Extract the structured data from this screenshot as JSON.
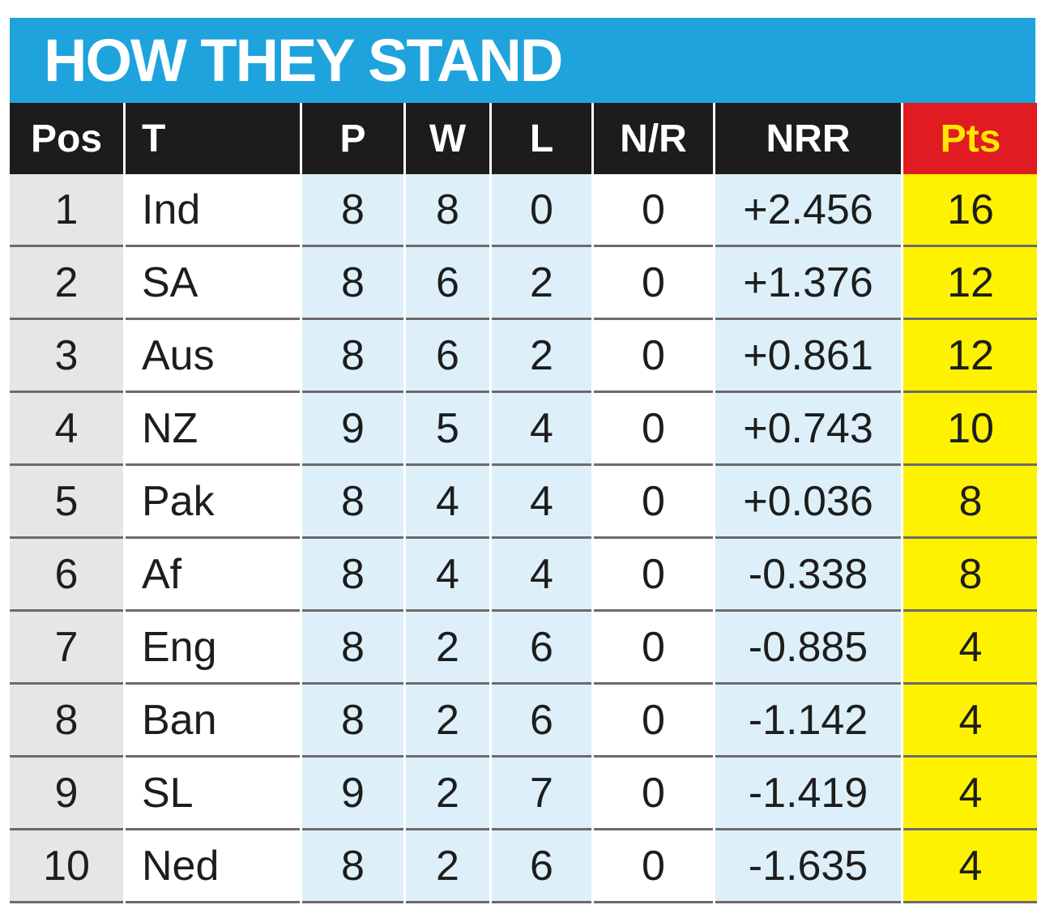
{
  "title": "HOW THEY STAND",
  "table": {
    "headers": [
      "Pos",
      "T",
      "P",
      "W",
      "L",
      "N/R",
      "NRR",
      "Pts"
    ],
    "rows": [
      [
        1,
        "Ind",
        8,
        8,
        0,
        0,
        "+2.456",
        16
      ],
      [
        2,
        "SA",
        8,
        6,
        2,
        0,
        "+1.376",
        12
      ],
      [
        3,
        "Aus",
        8,
        6,
        2,
        0,
        "+0.861",
        12
      ],
      [
        4,
        "NZ",
        9,
        5,
        4,
        0,
        "+0.743",
        10
      ],
      [
        5,
        "Pak",
        8,
        4,
        4,
        0,
        "+0.036",
        8
      ],
      [
        6,
        "Af",
        8,
        4,
        4,
        0,
        "-0.338",
        8
      ],
      [
        7,
        "Eng",
        8,
        2,
        6,
        0,
        "-0.885",
        4
      ],
      [
        8,
        "Ban",
        8,
        2,
        6,
        0,
        "-1.142",
        4
      ],
      [
        9,
        "SL",
        9,
        2,
        7,
        0,
        "-1.419",
        4
      ],
      [
        10,
        "Ned",
        8,
        2,
        6,
        0,
        "-1.635",
        4
      ]
    ]
  }
}
